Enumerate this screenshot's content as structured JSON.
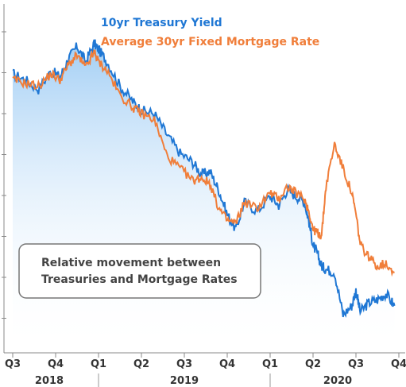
{
  "chart_data": {
    "type": "line",
    "title": "",
    "xlabel": "",
    "ylabel": "",
    "x_ticks": [
      "Q3",
      "Q4",
      "Q1",
      "Q2",
      "Q3",
      "Q4",
      "Q1",
      "Q2",
      "Q3",
      "Q4"
    ],
    "year_labels": [
      "2018",
      "2019",
      "2020"
    ],
    "grid": false,
    "legend_position": "top-center",
    "annotation": "Relative movement between\nTreasuries and Mortgage Rates",
    "annotation_lines": [
      "Relative movement between",
      "Treasuries and Mortgage Rates"
    ],
    "colors": {
      "treasury": "#1f77d4",
      "mortgage": "#f07e3a",
      "fill_top": "#9ccbf4"
    },
    "x_range": [
      0,
      9
    ],
    "y_range": [
      0,
      10
    ],
    "series": [
      {
        "name": "10yr Treasury Yield",
        "color": "#1f77d4",
        "x": [
          0,
          0.3,
          0.6,
          0.9,
          1.1,
          1.3,
          1.5,
          1.7,
          1.9,
          2.0,
          2.2,
          2.5,
          2.8,
          3.0,
          3.3,
          3.6,
          3.9,
          4.2,
          4.4,
          4.6,
          4.8,
          5.0,
          5.2,
          5.4,
          5.7,
          6.0,
          6.2,
          6.4,
          6.6,
          6.8,
          6.9,
          7.0,
          7.1,
          7.2,
          7.3,
          7.5,
          7.7,
          7.9,
          8.0,
          8.1,
          8.3,
          8.5,
          8.7,
          8.9
        ],
        "y": [
          8.1,
          7.9,
          7.6,
          8.2,
          8.0,
          8.6,
          9.0,
          8.5,
          9.1,
          8.9,
          8.5,
          7.7,
          7.2,
          6.9,
          6.8,
          6.1,
          5.5,
          5.2,
          4.8,
          4.9,
          4.3,
          3.5,
          3.0,
          3.9,
          3.6,
          4.1,
          3.8,
          4.3,
          4.1,
          3.9,
          3.3,
          2.5,
          2.2,
          1.8,
          1.7,
          1.6,
          0.2,
          0.5,
          1.0,
          0.3,
          0.6,
          0.7,
          0.9,
          0.5
        ]
      },
      {
        "name": "Average 30yr Fixed Mortgage Rate",
        "color": "#f07e3a",
        "x": [
          0,
          0.3,
          0.6,
          0.9,
          1.1,
          1.3,
          1.5,
          1.7,
          1.9,
          2.0,
          2.2,
          2.5,
          2.8,
          3.0,
          3.3,
          3.6,
          3.9,
          4.2,
          4.4,
          4.6,
          4.8,
          5.0,
          5.2,
          5.4,
          5.7,
          6.0,
          6.2,
          6.4,
          6.6,
          6.8,
          6.9,
          7.0,
          7.1,
          7.2,
          7.3,
          7.5,
          7.7,
          7.9,
          8.0,
          8.1,
          8.3,
          8.5,
          8.7,
          8.9
        ],
        "y": [
          7.9,
          7.8,
          7.7,
          8.1,
          7.9,
          8.4,
          8.7,
          8.3,
          8.8,
          8.5,
          8.2,
          7.4,
          7.0,
          6.8,
          6.6,
          5.4,
          5.0,
          4.6,
          4.7,
          4.5,
          3.7,
          3.3,
          3.2,
          3.9,
          3.7,
          4.2,
          4.0,
          4.4,
          4.2,
          4.0,
          3.6,
          3.0,
          2.9,
          2.8,
          4.4,
          5.8,
          5.0,
          4.2,
          3.5,
          2.5,
          2.1,
          1.8,
          1.9,
          1.6
        ]
      }
    ]
  }
}
